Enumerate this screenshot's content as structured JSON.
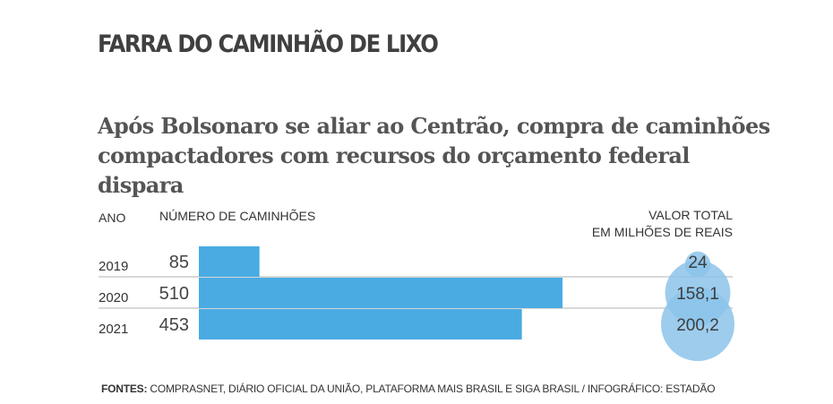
{
  "kicker": "FARRA DO CAMINHÃO DE LIXO",
  "subtitle": "Após Bolsonaro se aliar ao Centrão, compra de caminhões compactadores com recursos do orçamento federal dispara",
  "headers": {
    "year": "ANO",
    "count": "NÚMERO DE CAMINHÕES",
    "value_line1": "VALOR TOTAL",
    "value_line2": "EM MILHÕES DE REAIS"
  },
  "colors": {
    "bar": "#4aabe3",
    "bubble": "#8cc3ea",
    "text": "#4a4a4a",
    "rule": "#b0b0b0"
  },
  "chart_data": {
    "type": "bar",
    "categories": [
      "2019",
      "2020",
      "2021"
    ],
    "series": [
      {
        "values": [
          85,
          510,
          453
        ]
      },
      {
        "values": [
          24,
          158.1,
          200.2
        ]
      }
    ],
    "value_labels": [
      "24",
      "158,1",
      "200,2"
    ]
  },
  "source": {
    "label": "FONTES:",
    "text": "COMPRASNET, DIÁRIO OFICIAL DA UNIÃO, PLATAFORMA MAIS BRASIL E SIGA BRASIL / INFOGRÁFICO: ESTADÃO"
  }
}
